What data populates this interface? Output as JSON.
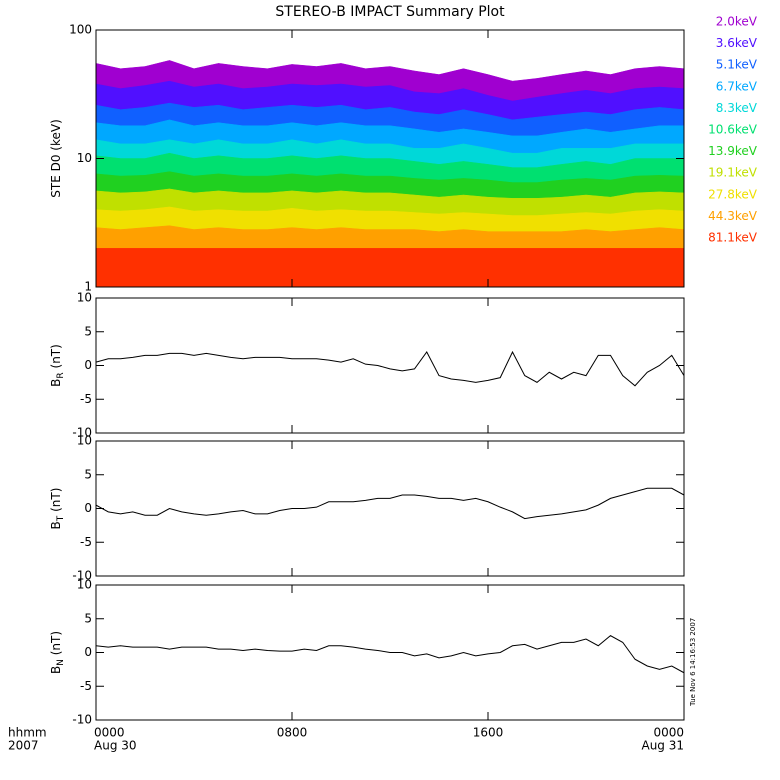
{
  "chart_data": [
    {
      "type": "area",
      "title": "STEREO-B IMPACT Summary Plot",
      "ylabel": "STE D0 (keV)",
      "log_y": true,
      "ylim": [
        1,
        100
      ],
      "yticks": [
        1,
        10,
        100
      ],
      "xlim": [
        0,
        24
      ],
      "xticks": [
        0,
        8,
        16,
        24
      ],
      "x": [
        0,
        1,
        2,
        3,
        4,
        5,
        6,
        7,
        8,
        9,
        10,
        11,
        12,
        13,
        14,
        15,
        16,
        17,
        18,
        19,
        20,
        21,
        22,
        23,
        24
      ],
      "legend": "right",
      "series": [
        {
          "name": "2.0keV",
          "color": "#a000d0",
          "values": [
            55,
            50,
            52,
            58,
            50,
            55,
            52,
            50,
            54,
            52,
            55,
            50,
            52,
            48,
            45,
            50,
            45,
            40,
            42,
            45,
            48,
            45,
            50,
            52,
            50
          ]
        },
        {
          "name": "3.6keV",
          "color": "#5010ff",
          "values": [
            38,
            35,
            37,
            40,
            36,
            38,
            35,
            36,
            38,
            37,
            38,
            36,
            37,
            33,
            32,
            35,
            31,
            28,
            30,
            32,
            34,
            32,
            35,
            36,
            35
          ]
        },
        {
          "name": "5.1keV",
          "color": "#1060ff",
          "values": [
            26,
            24,
            25,
            27,
            25,
            26,
            24,
            25,
            26,
            25,
            26,
            24,
            25,
            23,
            22,
            24,
            22,
            20,
            21,
            22,
            23,
            22,
            24,
            25,
            24
          ]
        },
        {
          "name": "6.7keV",
          "color": "#00a8ff",
          "values": [
            19,
            18,
            18,
            20,
            18,
            19,
            18,
            18,
            19,
            18,
            19,
            18,
            18,
            17,
            16,
            17,
            16,
            15,
            15,
            16,
            17,
            16,
            17,
            18,
            18
          ]
        },
        {
          "name": "8.3keV",
          "color": "#00d8d8",
          "values": [
            14,
            13,
            13,
            14,
            13,
            14,
            13,
            13,
            14,
            13,
            14,
            13,
            13,
            12,
            12,
            13,
            12,
            11,
            11,
            12,
            12,
            12,
            13,
            13,
            13
          ]
        },
        {
          "name": "10.6keV",
          "color": "#00e070",
          "values": [
            10.5,
            10,
            10,
            11,
            10,
            10.5,
            10,
            10,
            10.5,
            10,
            10.5,
            10,
            10,
            9.5,
            9,
            9.5,
            9,
            8.5,
            8.5,
            9,
            9.5,
            9,
            10,
            10,
            10
          ]
        },
        {
          "name": "13.9keV",
          "color": "#20d020",
          "values": [
            7.6,
            7.3,
            7.4,
            7.9,
            7.3,
            7.6,
            7.3,
            7.3,
            7.6,
            7.3,
            7.6,
            7.3,
            7.3,
            7,
            6.8,
            7,
            6.8,
            6.5,
            6.5,
            6.8,
            7,
            6.8,
            7.3,
            7.4,
            7.3
          ]
        },
        {
          "name": "19.1keV",
          "color": "#c0e000",
          "values": [
            5.6,
            5.4,
            5.5,
            5.8,
            5.4,
            5.6,
            5.4,
            5.4,
            5.6,
            5.4,
            5.6,
            5.4,
            5.4,
            5.2,
            5,
            5.2,
            5,
            4.9,
            4.9,
            5,
            5.2,
            5,
            5.4,
            5.5,
            5.4
          ]
        },
        {
          "name": "27.8keV",
          "color": "#f0e000",
          "values": [
            4,
            3.9,
            4,
            4.2,
            3.9,
            4,
            3.9,
            3.9,
            4.1,
            3.9,
            4,
            3.9,
            3.9,
            3.8,
            3.7,
            3.8,
            3.7,
            3.6,
            3.6,
            3.7,
            3.8,
            3.7,
            3.9,
            4,
            3.9
          ]
        },
        {
          "name": "44.3keV",
          "color": "#ffa000",
          "values": [
            2.9,
            2.8,
            2.9,
            3,
            2.8,
            2.9,
            2.8,
            2.8,
            2.9,
            2.8,
            2.9,
            2.8,
            2.8,
            2.8,
            2.7,
            2.8,
            2.7,
            2.7,
            2.7,
            2.7,
            2.8,
            2.7,
            2.8,
            2.9,
            2.8
          ]
        },
        {
          "name": "81.1keV",
          "color": "#ff3000",
          "values": [
            2,
            2,
            2,
            2,
            2,
            2,
            2,
            2,
            2,
            2,
            2,
            2,
            2,
            2,
            2,
            2,
            2,
            2,
            2,
            2,
            2,
            2,
            2,
            2,
            2
          ]
        }
      ]
    },
    {
      "type": "line",
      "ylabel": "B",
      "ylabel_sub": "R",
      "ylabel_unit": "(nT)",
      "color": "#000000",
      "ylim": [
        -10,
        10
      ],
      "yticks": [
        -10,
        -5,
        0,
        5,
        10
      ],
      "xlim": [
        0,
        24
      ],
      "xticks": [
        0,
        8,
        16,
        24
      ],
      "x": [
        0,
        0.5,
        1,
        1.5,
        2,
        2.5,
        3,
        3.5,
        4,
        4.5,
        5,
        5.5,
        6,
        6.5,
        7,
        7.5,
        8,
        8.5,
        9,
        9.5,
        10,
        10.5,
        11,
        11.5,
        12,
        12.5,
        13,
        13.5,
        14,
        14.5,
        15,
        15.5,
        16,
        16.5,
        17,
        17.5,
        18,
        18.5,
        19,
        19.5,
        20,
        20.5,
        21,
        21.5,
        22,
        22.5,
        23,
        23.5,
        24
      ],
      "values": [
        0.5,
        1,
        1,
        1.2,
        1.5,
        1.5,
        1.8,
        1.8,
        1.5,
        1.8,
        1.5,
        1.2,
        1,
        1.2,
        1.2,
        1.2,
        1,
        1,
        1,
        0.8,
        0.5,
        1,
        0.2,
        0,
        -0.5,
        -0.8,
        -0.5,
        2,
        -1.5,
        -2,
        -2.2,
        -2.5,
        -2.2,
        -1.8,
        2,
        -1.5,
        -2.5,
        -1,
        -2,
        -1,
        -1.5,
        1.5,
        1.5,
        -1.5,
        -3,
        -1,
        0,
        1.5,
        -1.5
      ]
    },
    {
      "type": "line",
      "ylabel": "B",
      "ylabel_sub": "T",
      "ylabel_unit": "(nT)",
      "color": "#000000",
      "ylim": [
        -10,
        10
      ],
      "yticks": [
        -10,
        -5,
        0,
        5,
        10
      ],
      "xlim": [
        0,
        24
      ],
      "xticks": [
        0,
        8,
        16,
        24
      ],
      "x": [
        0,
        0.5,
        1,
        1.5,
        2,
        2.5,
        3,
        3.5,
        4,
        4.5,
        5,
        5.5,
        6,
        6.5,
        7,
        7.5,
        8,
        8.5,
        9,
        9.5,
        10,
        10.5,
        11,
        11.5,
        12,
        12.5,
        13,
        13.5,
        14,
        14.5,
        15,
        15.5,
        16,
        16.5,
        17,
        17.5,
        18,
        18.5,
        19,
        19.5,
        20,
        20.5,
        21,
        21.5,
        22,
        22.5,
        23,
        23.5,
        24
      ],
      "values": [
        0.5,
        -0.5,
        -0.8,
        -0.5,
        -1,
        -1,
        0,
        -0.5,
        -0.8,
        -1,
        -0.8,
        -0.5,
        -0.3,
        -0.8,
        -0.8,
        -0.3,
        0,
        0,
        0.2,
        1,
        1,
        1,
        1.2,
        1.5,
        1.5,
        2,
        2,
        1.8,
        1.5,
        1.5,
        1.2,
        1.5,
        1,
        0.2,
        -0.5,
        -1.5,
        -1.2,
        -1,
        -0.8,
        -0.5,
        -0.2,
        0.5,
        1.5,
        2,
        2.5,
        3,
        3,
        3,
        2
      ]
    },
    {
      "type": "line",
      "ylabel": "B",
      "ylabel_sub": "N",
      "ylabel_unit": "(nT)",
      "color": "#000000",
      "ylim": [
        -10,
        10
      ],
      "yticks": [
        -10,
        -5,
        0,
        5,
        10
      ],
      "xlim": [
        0,
        24
      ],
      "xticks": [
        {
          "value": 0,
          "label": "0000"
        },
        {
          "value": 8,
          "label": "0800"
        },
        {
          "value": 16,
          "label": "1600"
        },
        {
          "value": 24,
          "label": "0000"
        }
      ],
      "xtick_dates": [
        "Aug 30",
        null,
        null,
        "Aug 31"
      ],
      "x": [
        0,
        0.5,
        1,
        1.5,
        2,
        2.5,
        3,
        3.5,
        4,
        4.5,
        5,
        5.5,
        6,
        6.5,
        7,
        7.5,
        8,
        8.5,
        9,
        9.5,
        10,
        10.5,
        11,
        11.5,
        12,
        12.5,
        13,
        13.5,
        14,
        14.5,
        15,
        15.5,
        16,
        16.5,
        17,
        17.5,
        18,
        18.5,
        19,
        19.5,
        20,
        20.5,
        21,
        21.5,
        22,
        22.5,
        23,
        23.5,
        24
      ],
      "values": [
        1,
        0.8,
        1,
        0.8,
        0.8,
        0.8,
        0.5,
        0.8,
        0.8,
        0.8,
        0.5,
        0.5,
        0.3,
        0.5,
        0.3,
        0.2,
        0.2,
        0.5,
        0.3,
        1,
        1,
        0.8,
        0.5,
        0.3,
        0,
        0,
        -0.5,
        -0.2,
        -0.8,
        -0.5,
        0,
        -0.5,
        -0.2,
        0,
        1,
        1.2,
        0.5,
        1,
        1.5,
        1.5,
        2,
        1,
        2.5,
        1.5,
        -1,
        -2,
        -2.5,
        -2,
        -3
      ]
    }
  ],
  "footer": {
    "time_unit": "hhmm",
    "year": "2007",
    "timestamp": "Tue Nov  6 14:16:53 2007"
  }
}
